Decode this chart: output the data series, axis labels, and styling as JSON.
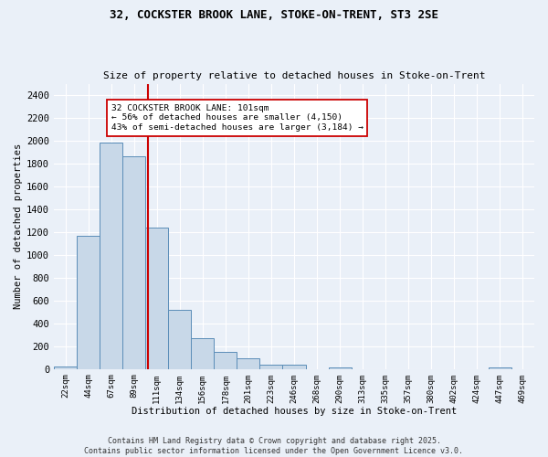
{
  "title1": "32, COCKSTER BROOK LANE, STOKE-ON-TRENT, ST3 2SE",
  "title2": "Size of property relative to detached houses in Stoke-on-Trent",
  "xlabel": "Distribution of detached houses by size in Stoke-on-Trent",
  "ylabel": "Number of detached properties",
  "bar_labels": [
    "22sqm",
    "44sqm",
    "67sqm",
    "89sqm",
    "111sqm",
    "134sqm",
    "156sqm",
    "178sqm",
    "201sqm",
    "223sqm",
    "246sqm",
    "268sqm",
    "290sqm",
    "313sqm",
    "335sqm",
    "357sqm",
    "380sqm",
    "402sqm",
    "424sqm",
    "447sqm",
    "469sqm"
  ],
  "bar_values": [
    25,
    1170,
    1980,
    1860,
    1240,
    520,
    270,
    150,
    90,
    40,
    40,
    0,
    15,
    0,
    0,
    0,
    0,
    0,
    0,
    15,
    0
  ],
  "bar_color": "#c8d8e8",
  "bar_edge_color": "#5b8db8",
  "vline_bin_index": 3.6,
  "vline_color": "#cc0000",
  "annotation_text": "32 COCKSTER BROOK LANE: 101sqm\n← 56% of detached houses are smaller (4,150)\n43% of semi-detached houses are larger (3,184) →",
  "annotation_box_color": "#ffffff",
  "annotation_box_edge": "#cc0000",
  "ylim": [
    0,
    2500
  ],
  "yticks": [
    0,
    200,
    400,
    600,
    800,
    1000,
    1200,
    1400,
    1600,
    1800,
    2000,
    2200,
    2400
  ],
  "footer1": "Contains HM Land Registry data © Crown copyright and database right 2025.",
  "footer2": "Contains public sector information licensed under the Open Government Licence v3.0.",
  "bg_color": "#eaf0f8",
  "grid_color": "#ffffff"
}
